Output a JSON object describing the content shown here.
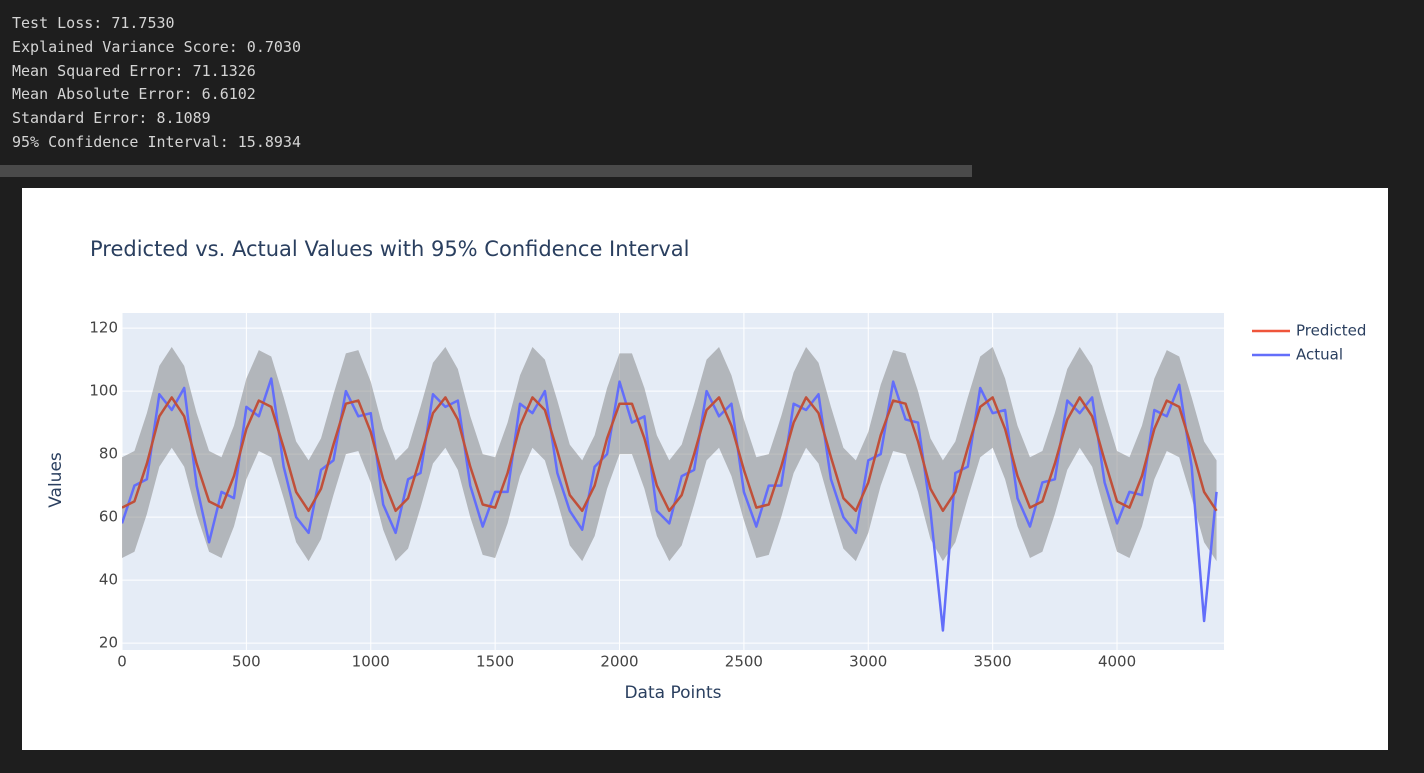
{
  "console": {
    "lines": [
      "Test Loss: 71.7530",
      "Explained Variance Score: 0.7030",
      "Mean Squared Error: 71.1326",
      "Mean Absolute Error: 6.6102",
      "Standard Error: 8.1089",
      "95% Confidence Interval: 15.8934"
    ]
  },
  "chart_data": {
    "type": "line",
    "title": "Predicted vs. Actual Values with 95% Confidence Interval",
    "x_label": "Data Points",
    "y_label": "Values",
    "xlim": [
      0,
      4430
    ],
    "ylim": [
      17.8,
      124.8
    ],
    "xticks": [
      0,
      500,
      1000,
      1500,
      2000,
      2500,
      3000,
      3500,
      4000
    ],
    "yticks": [
      20,
      40,
      60,
      80,
      100,
      120
    ],
    "grid": true,
    "legend": "outside-right",
    "background": "#e5ecf6",
    "x": [
      0,
      50,
      100,
      150,
      200,
      250,
      300,
      350,
      400,
      450,
      500,
      550,
      600,
      650,
      700,
      750,
      800,
      850,
      900,
      950,
      1000,
      1050,
      1100,
      1150,
      1200,
      1250,
      1300,
      1350,
      1400,
      1450,
      1500,
      1550,
      1600,
      1650,
      1700,
      1750,
      1800,
      1850,
      1900,
      1950,
      2000,
      2050,
      2100,
      2150,
      2200,
      2250,
      2300,
      2350,
      2400,
      2450,
      2500,
      2550,
      2600,
      2650,
      2700,
      2750,
      2800,
      2850,
      2900,
      2950,
      3000,
      3050,
      3100,
      3150,
      3200,
      3250,
      3300,
      3350,
      3400,
      3450,
      3500,
      3550,
      3600,
      3650,
      3700,
      3750,
      3800,
      3850,
      3900,
      3950,
      4000,
      4050,
      4100,
      4150,
      4200,
      4250,
      4300,
      4350,
      4400
    ],
    "band": {
      "color": "rgba(128,128,128,0.5)",
      "upper": [
        79,
        81,
        93,
        108,
        114,
        108,
        93,
        81,
        79,
        89,
        104,
        113,
        111,
        98,
        84,
        78,
        85,
        99,
        112,
        113,
        103,
        88,
        78,
        82,
        95,
        109,
        114,
        107,
        92,
        80,
        79,
        90,
        105,
        114,
        110,
        97,
        83,
        78,
        86,
        101,
        112,
        112,
        101,
        86,
        78,
        83,
        96,
        110,
        114,
        105,
        91,
        79,
        80,
        92,
        106,
        114,
        109,
        95,
        82,
        78,
        87,
        102,
        113,
        112,
        100,
        85,
        78,
        84,
        98,
        111,
        114,
        104,
        89,
        79,
        81,
        93,
        107,
        114,
        108,
        94,
        81,
        79,
        89,
        104,
        113,
        111,
        98,
        84,
        78
      ],
      "lower": [
        47,
        49,
        61,
        76,
        82,
        76,
        61,
        49,
        47,
        57,
        72,
        81,
        79,
        66,
        52,
        46,
        53,
        67,
        80,
        81,
        71,
        56,
        46,
        50,
        63,
        77,
        82,
        75,
        60,
        48,
        47,
        58,
        73,
        82,
        78,
        65,
        51,
        46,
        54,
        69,
        80,
        80,
        69,
        54,
        46,
        51,
        64,
        78,
        82,
        73,
        59,
        47,
        48,
        60,
        74,
        82,
        77,
        63,
        50,
        46,
        55,
        70,
        81,
        80,
        68,
        53,
        46,
        52,
        66,
        79,
        82,
        72,
        57,
        47,
        49,
        61,
        75,
        82,
        76,
        62,
        49,
        47,
        57,
        72,
        81,
        79,
        66,
        52,
        46
      ]
    },
    "series": [
      {
        "name": "Predicted",
        "color": "#ef553b",
        "line_color": "#c0503a",
        "values": [
          63,
          65,
          77,
          92,
          98,
          92,
          77,
          65,
          63,
          73,
          88,
          97,
          95,
          82,
          68,
          62,
          69,
          83,
          96,
          97,
          87,
          72,
          62,
          66,
          79,
          93,
          98,
          91,
          76,
          64,
          63,
          74,
          89,
          98,
          94,
          81,
          67,
          62,
          70,
          85,
          96,
          96,
          85,
          70,
          62,
          67,
          80,
          94,
          98,
          89,
          75,
          63,
          64,
          76,
          90,
          98,
          93,
          79,
          66,
          62,
          71,
          86,
          97,
          96,
          84,
          69,
          62,
          68,
          82,
          95,
          98,
          88,
          73,
          63,
          65,
          77,
          91,
          98,
          92,
          78,
          65,
          63,
          73,
          88,
          97,
          95,
          82,
          68,
          62
        ]
      },
      {
        "name": "Actual",
        "color": "#636efa",
        "line_color": "#636efa",
        "values": [
          58,
          70,
          72,
          99,
          94,
          101,
          70,
          52,
          68,
          66,
          95,
          92,
          104,
          76,
          60,
          55,
          75,
          78,
          100,
          92,
          93,
          64,
          55,
          72,
          74,
          99,
          95,
          97,
          70,
          57,
          68,
          68,
          96,
          93,
          100,
          74,
          62,
          56,
          76,
          80,
          103,
          90,
          92,
          62,
          58,
          73,
          75,
          100,
          92,
          96,
          68,
          57,
          70,
          70,
          96,
          94,
          99,
          72,
          60,
          55,
          78,
          80,
          103,
          91,
          90,
          62,
          24,
          74,
          76,
          101,
          93,
          94,
          66,
          57,
          71,
          72,
          97,
          93,
          98,
          71,
          58,
          68,
          67,
          94,
          92,
          102,
          76,
          27,
          68
        ]
      }
    ]
  }
}
